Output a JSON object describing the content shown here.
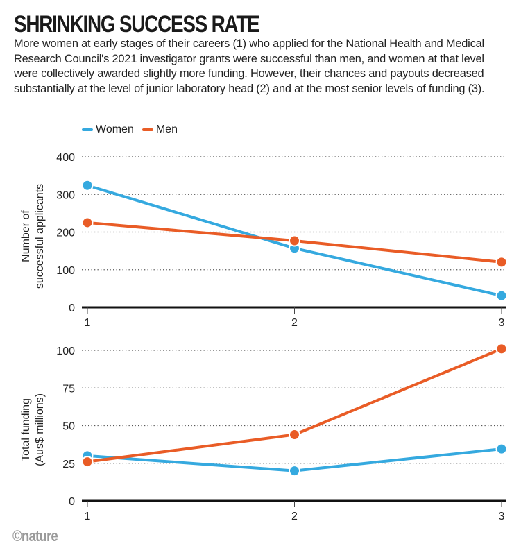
{
  "header": {
    "title": "SHRINKING SUCCESS RATE",
    "subtitle": "More women at early stages of their careers (1) who applied for the National Health and Medical Research Council's 2021 investigator grants were successful than men, and women at that level were collectively awarded slightly more funding. However, their chances and payouts decreased substantially at the level of junior laboratory head (2) and at the most senior levels of funding (3)."
  },
  "legend": [
    {
      "name": "Women",
      "color": "#35a9df"
    },
    {
      "name": "Men",
      "color": "#e95c26"
    }
  ],
  "credit": "©nature",
  "chart_data": [
    {
      "type": "line",
      "title": "",
      "xlabel": "",
      "ylabel": "Number of successful applicants",
      "ylabel_lines": [
        "Number of",
        "successful applicants"
      ],
      "x": [
        1,
        2,
        3
      ],
      "x_tick_labels": [
        "1",
        "2",
        "3"
      ],
      "ylim": [
        0,
        400
      ],
      "y_ticks": [
        0,
        100,
        200,
        300,
        400
      ],
      "y_tick_labels": [
        "0",
        "100",
        "200",
        "300",
        "400"
      ],
      "grid": true,
      "legend_position": "top-left",
      "series": [
        {
          "name": "Women",
          "color": "#35a9df",
          "values": [
            324,
            157,
            31
          ]
        },
        {
          "name": "Men",
          "color": "#e95c26",
          "values": [
            225,
            177,
            120
          ]
        }
      ]
    },
    {
      "type": "line",
      "title": "",
      "xlabel": "",
      "ylabel": "Total funding (Aus$ millions)",
      "ylabel_lines": [
        "Total funding",
        "(Aus$ millions)"
      ],
      "x": [
        1,
        2,
        3
      ],
      "x_tick_labels": [
        "1",
        "2",
        "3"
      ],
      "ylim": [
        0,
        100
      ],
      "y_ticks": [
        0,
        25,
        50,
        75,
        100
      ],
      "y_tick_labels": [
        "0",
        "25",
        "50",
        "75",
        "100"
      ],
      "grid": true,
      "legend_position": "top-left",
      "series": [
        {
          "name": "Women",
          "color": "#35a9df",
          "values": [
            30,
            20,
            34.5
          ]
        },
        {
          "name": "Men",
          "color": "#e95c26",
          "values": [
            26,
            44,
            101
          ]
        }
      ]
    }
  ]
}
